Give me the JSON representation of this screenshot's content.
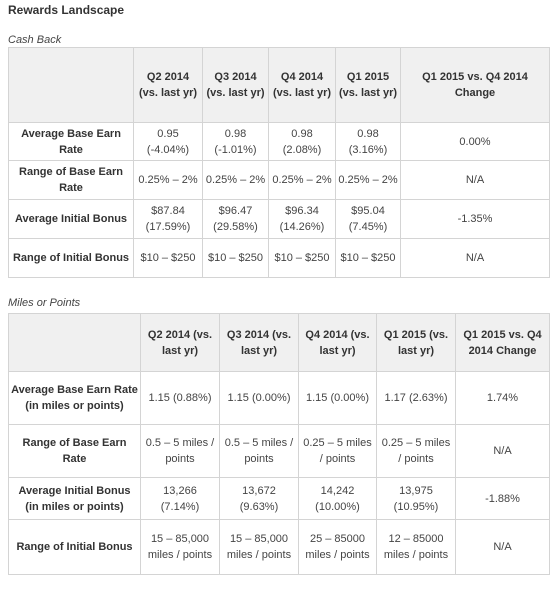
{
  "title": "Rewards Landscape",
  "cash_back": {
    "caption": "Cash Back",
    "headers": [
      "",
      "Q2 2014 (vs. last yr)",
      "Q3 2014 (vs. last yr)",
      "Q4 2014 (vs. last yr)",
      "Q1 2015 (vs. last yr)",
      "Q1 2015 vs. Q4 2014 Change"
    ],
    "rows": [
      [
        "Average Base Earn Rate",
        "0.95 (-4.04%)",
        "0.98 (-1.01%)",
        "0.98 (2.08%)",
        "0.98 (3.16%)",
        "0.00%"
      ],
      [
        "Range of Base Earn Rate",
        "0.25% – 2%",
        "0.25% – 2%",
        "0.25% – 2%",
        "0.25% – 2%",
        "N/A"
      ],
      [
        "Average Initial Bonus",
        "$87.84 (17.59%)",
        "$96.47 (29.58%)",
        "$96.34 (14.26%)",
        "$95.04 (7.45%)",
        "-1.35%"
      ],
      [
        "Range of Initial Bonus",
        "$10 – $250",
        "$10 – $250",
        "$10 – $250",
        "$10 – $250",
        "N/A"
      ]
    ]
  },
  "miles_points": {
    "caption": "Miles or Points",
    "headers": [
      "",
      "Q2 2014 (vs. last yr)",
      "Q3 2014 (vs. last yr)",
      "Q4 2014 (vs. last yr)",
      "Q1 2015 (vs. last yr)",
      "Q1 2015 vs. Q4 2014 Change"
    ],
    "rows": [
      [
        "Average Base Earn Rate (in miles or points)",
        "1.15 (0.88%)",
        "1.15 (0.00%)",
        "1.15 (0.00%)",
        "1.17 (2.63%)",
        "1.74%"
      ],
      [
        "Range of Base Earn Rate",
        "0.5 – 5 miles / points",
        "0.5 – 5 miles / points",
        "0.25 – 5 miles / points",
        "0.25 – 5 miles / points",
        "N/A"
      ],
      [
        "Average Initial Bonus (in miles or points)",
        "13,266 (7.14%)",
        "13,672 (9.63%)",
        "14,242 (10.00%)",
        "13,975 (10.95%)",
        "-1.88%"
      ],
      [
        "Range of Initial Bonus",
        "15 – 85,000 miles / points",
        "15 – 85,000 miles / points",
        "25 – 85000 miles / points",
        "12 – 85000 miles / points",
        "N/A"
      ]
    ]
  }
}
